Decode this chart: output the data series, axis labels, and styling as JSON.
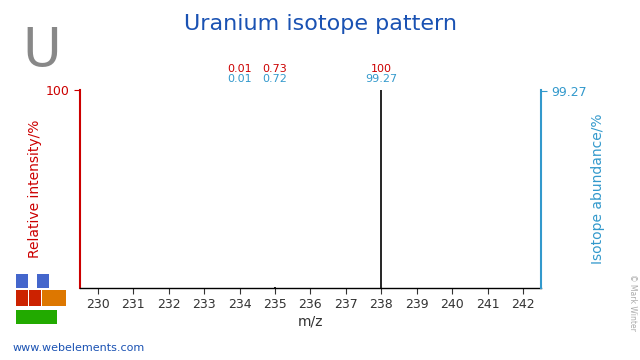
{
  "title": "Uranium isotope pattern",
  "element_symbol": "U",
  "xlabel": "m/z",
  "ylabel_left": "Relative intensity/%",
  "ylabel_right": "Isotope abundance/%",
  "xlim": [
    229.5,
    242.5
  ],
  "ylim": [
    0,
    100
  ],
  "xticks": [
    230,
    231,
    232,
    233,
    234,
    235,
    236,
    237,
    238,
    239,
    240,
    241,
    242
  ],
  "isotopes": [
    {
      "mz": 234,
      "relative_intensity": 0.0135,
      "abundance": 0.01
    },
    {
      "mz": 235,
      "relative_intensity": 0.735,
      "abundance": 0.72
    },
    {
      "mz": 238,
      "relative_intensity": 100.0,
      "abundance": 99.27
    }
  ],
  "annotation_data": [
    {
      "mz": 234,
      "red": "0.01",
      "blue": "0.01"
    },
    {
      "mz": 235,
      "red": "0.73",
      "blue": "0.72"
    },
    {
      "mz": 238,
      "red": "100",
      "blue": "99.27"
    }
  ],
  "title_color": "#1a52b3",
  "left_axis_color": "#cc0000",
  "right_axis_color": "#3399cc",
  "line_color": "#000000",
  "background_color": "#ffffff",
  "title_fontsize": 16,
  "axis_label_fontsize": 10,
  "tick_fontsize": 9,
  "annotation_fontsize_red": 8,
  "annotation_fontsize_blue": 8,
  "element_fontsize": 38,
  "element_color": "#888888",
  "website_text": "www.webelements.com",
  "copyright_text": "© Mark Winter",
  "pt_colors": {
    "blue": "#4466cc",
    "red": "#cc2200",
    "orange": "#dd7700",
    "green": "#22aa00"
  }
}
